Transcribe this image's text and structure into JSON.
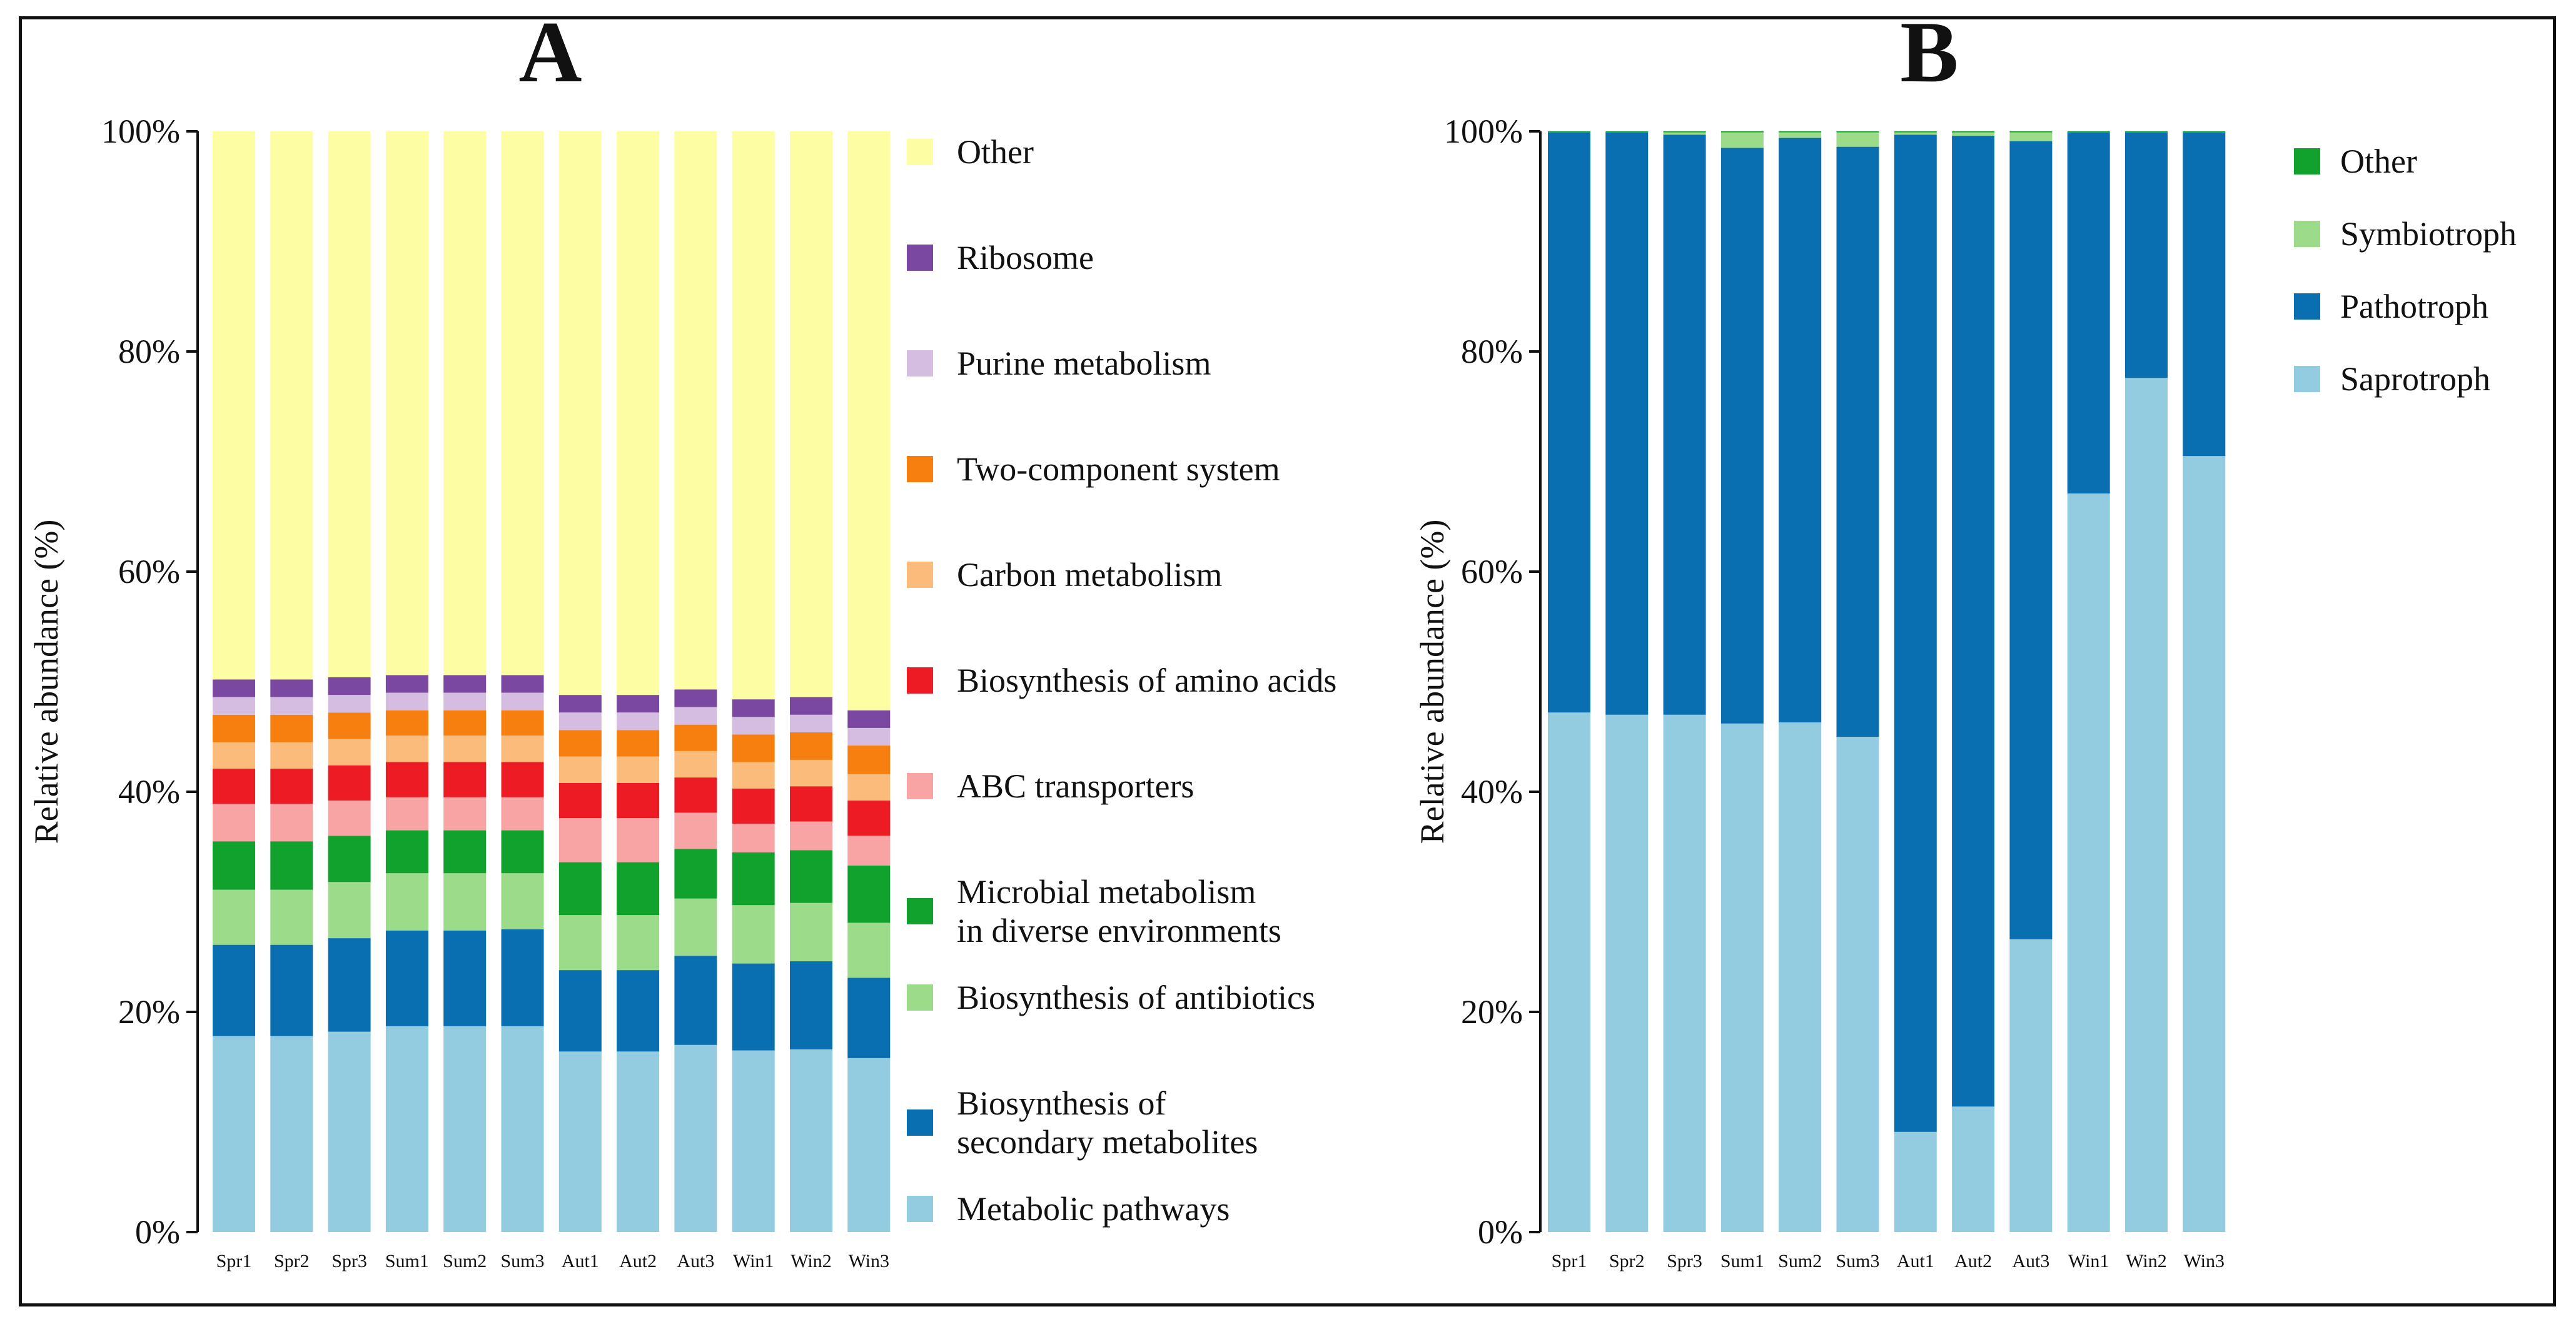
{
  "chart_data": [
    {
      "type": "bar",
      "stacked": true,
      "panel_label": "A",
      "ylabel": "Relative abundance (%)",
      "ylim": [
        0,
        100
      ],
      "yticks": [
        "0%",
        "20%",
        "40%",
        "60%",
        "80%",
        "100%"
      ],
      "categories": [
        "Spr1",
        "Spr2",
        "Spr3",
        "Sum1",
        "Sum2",
        "Sum3",
        "Aut1",
        "Aut2",
        "Aut3",
        "Win1",
        "Win2",
        "Win3"
      ],
      "legend_position": "right",
      "series": [
        {
          "name": "Metabolic pathways",
          "color": "#93cbe1",
          "values": [
            17.8,
            17.8,
            18.2,
            18.7,
            18.7,
            18.7,
            16.4,
            16.4,
            17.0,
            16.5,
            16.6,
            15.8
          ]
        },
        {
          "name": "Biosynthesis of secondary metabolites",
          "color": "#0a6fb0",
          "values": [
            8.3,
            8.3,
            8.5,
            8.7,
            8.7,
            8.8,
            7.4,
            7.4,
            8.1,
            7.9,
            8.0,
            7.3
          ]
        },
        {
          "name": "Biosynthesis of antibiotics",
          "color": "#9bdb8a",
          "values": [
            5.0,
            5.0,
            5.1,
            5.2,
            5.2,
            5.1,
            5.0,
            5.0,
            5.2,
            5.3,
            5.3,
            5.0
          ]
        },
        {
          "name": "Microbial metabolism in diverse environments",
          "color": "#10a22d",
          "values": [
            4.4,
            4.4,
            4.2,
            3.9,
            3.9,
            3.9,
            4.8,
            4.8,
            4.5,
            4.8,
            4.8,
            5.2
          ]
        },
        {
          "name": "ABC transporters",
          "color": "#f8a4a5",
          "values": [
            3.4,
            3.4,
            3.2,
            3.0,
            3.0,
            3.0,
            4.0,
            4.0,
            3.3,
            2.6,
            2.6,
            2.7
          ]
        },
        {
          "name": "Biosynthesis of amino acids",
          "color": "#ed1b24",
          "values": [
            3.2,
            3.2,
            3.2,
            3.2,
            3.2,
            3.2,
            3.2,
            3.2,
            3.2,
            3.2,
            3.2,
            3.2
          ]
        },
        {
          "name": "Carbon metabolism",
          "color": "#fbbb7b",
          "values": [
            2.4,
            2.4,
            2.4,
            2.4,
            2.4,
            2.4,
            2.4,
            2.4,
            2.4,
            2.4,
            2.4,
            2.4
          ]
        },
        {
          "name": "Two-component system",
          "color": "#f67f10",
          "values": [
            2.5,
            2.5,
            2.4,
            2.3,
            2.3,
            2.3,
            2.4,
            2.4,
            2.4,
            2.5,
            2.5,
            2.6
          ]
        },
        {
          "name": "Purine metabolism",
          "color": "#d5bde2",
          "values": [
            1.6,
            1.6,
            1.6,
            1.6,
            1.6,
            1.6,
            1.6,
            1.6,
            1.6,
            1.6,
            1.6,
            1.6
          ]
        },
        {
          "name": "Ribosome",
          "color": "#7a48a1",
          "values": [
            1.6,
            1.6,
            1.6,
            1.6,
            1.6,
            1.6,
            1.6,
            1.6,
            1.6,
            1.6,
            1.6,
            1.6
          ]
        },
        {
          "name": "Other",
          "color": "#fdfda4",
          "values": [
            49.8,
            49.8,
            49.6,
            49.4,
            49.4,
            49.4,
            51.2,
            51.2,
            50.7,
            51.6,
            51.4,
            52.6
          ]
        }
      ],
      "legend": [
        {
          "lines": [
            "Other"
          ],
          "series": "Other"
        },
        {
          "lines": [
            "Ribosome"
          ],
          "series": "Ribosome"
        },
        {
          "lines": [
            "Purine metabolism"
          ],
          "series": "Purine metabolism"
        },
        {
          "lines": [
            "Two-component system"
          ],
          "series": "Two-component system"
        },
        {
          "lines": [
            "Carbon metabolism"
          ],
          "series": "Carbon metabolism"
        },
        {
          "lines": [
            "Biosynthesis of amino acids"
          ],
          "series": "Biosynthesis of amino acids"
        },
        {
          "lines": [
            "ABC transporters"
          ],
          "series": "ABC transporters"
        },
        {
          "lines": [
            "Microbial metabolism",
            "in diverse environments"
          ],
          "series": "Microbial metabolism in diverse environments"
        },
        {
          "lines": [
            "Biosynthesis of antibiotics"
          ],
          "series": "Biosynthesis of antibiotics"
        },
        {
          "lines": [
            "Biosynthesis of",
            "secondary metabolites"
          ],
          "series": "Biosynthesis of secondary metabolites"
        },
        {
          "lines": [
            "Metabolic pathways"
          ],
          "series": "Metabolic pathways"
        }
      ]
    },
    {
      "type": "bar",
      "stacked": true,
      "panel_label": "B",
      "ylabel": "Relative abundance (%)",
      "ylim": [
        0,
        100
      ],
      "yticks": [
        "0%",
        "20%",
        "40%",
        "60%",
        "80%",
        "100%"
      ],
      "categories": [
        "Spr1",
        "Spr2",
        "Spr3",
        "Sum1",
        "Sum2",
        "Sum3",
        "Aut1",
        "Aut2",
        "Aut3",
        "Win1",
        "Win2",
        "Win3"
      ],
      "legend_position": "right",
      "series": [
        {
          "name": "Saprotroph",
          "color": "#93cbe1",
          "values": [
            47.2,
            47.0,
            47.0,
            46.2,
            46.3,
            45.0,
            9.1,
            11.4,
            26.6,
            67.1,
            77.6,
            70.5
          ]
        },
        {
          "name": "Pathotroph",
          "color": "#0a6fb0",
          "values": [
            52.7,
            52.9,
            52.7,
            52.3,
            53.1,
            53.6,
            90.6,
            88.2,
            72.5,
            32.8,
            22.3,
            29.4
          ]
        },
        {
          "name": "Symbiotroph",
          "color": "#9bdb8a",
          "values": [
            0.0,
            0.0,
            0.2,
            1.4,
            0.5,
            1.3,
            0.2,
            0.3,
            0.8,
            0.0,
            0.0,
            0.0
          ]
        },
        {
          "name": "Other",
          "color": "#10a22d",
          "values": [
            0.1,
            0.1,
            0.1,
            0.1,
            0.1,
            0.1,
            0.1,
            0.1,
            0.1,
            0.1,
            0.1,
            0.1
          ]
        }
      ],
      "legend": [
        {
          "lines": [
            "Other"
          ],
          "series": "Other"
        },
        {
          "lines": [
            "Symbiotroph"
          ],
          "series": "Symbiotroph"
        },
        {
          "lines": [
            "Pathotroph"
          ],
          "series": "Pathotroph"
        },
        {
          "lines": [
            "Saprotroph"
          ],
          "series": "Saprotroph"
        }
      ]
    }
  ]
}
